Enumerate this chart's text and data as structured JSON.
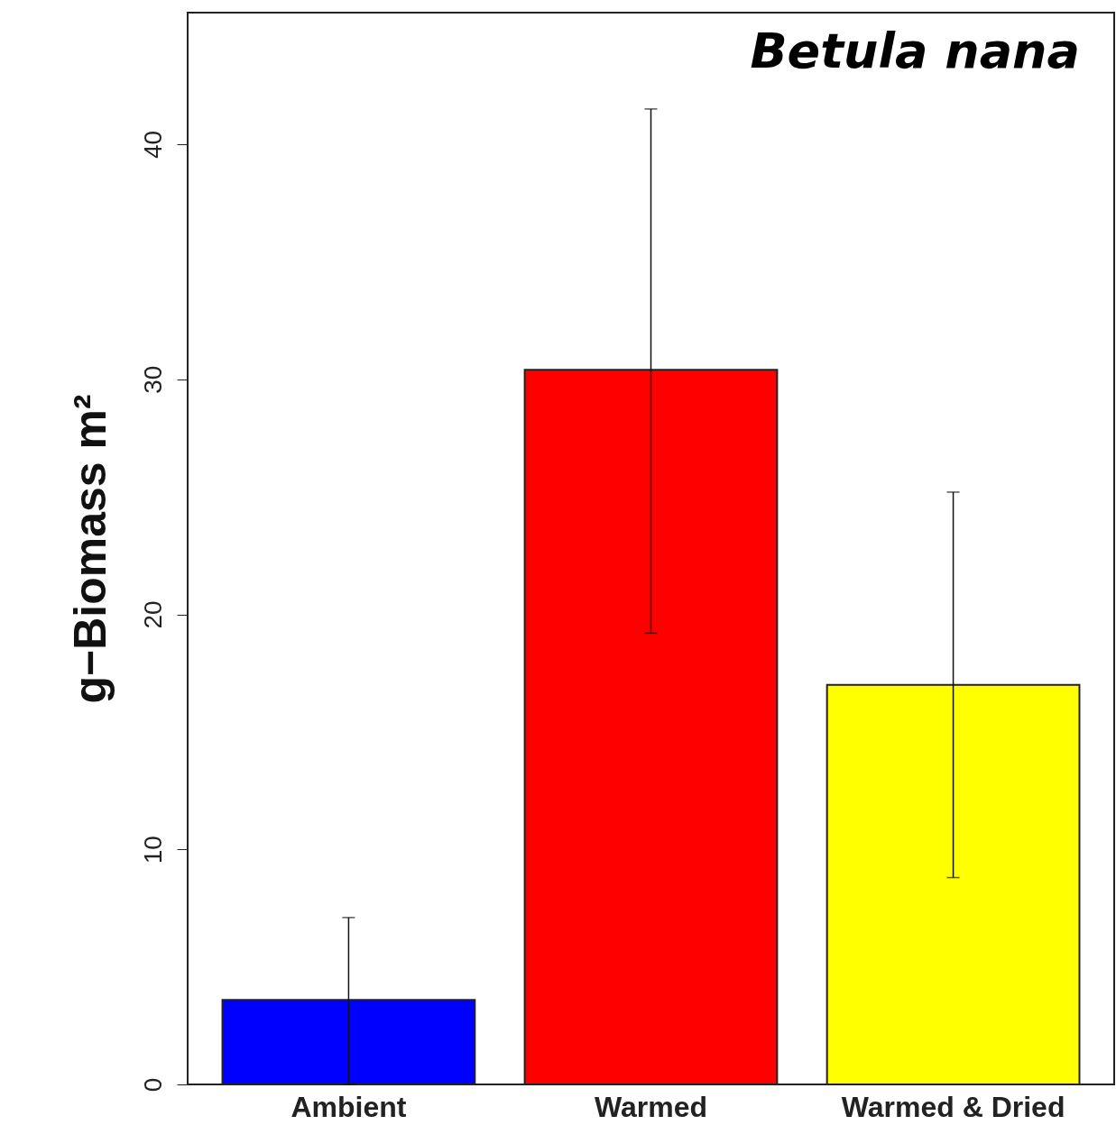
{
  "chart_data": {
    "type": "bar",
    "title": "Betula nana",
    "ylabel": "g−Biomass  m²",
    "categories": [
      "Ambient",
      "Warmed",
      "Warmed & Dried"
    ],
    "values": [
      3.6,
      30.4,
      17.0
    ],
    "colors": [
      "#0000ff",
      "#ff0000",
      "#ffff00"
    ],
    "errors": [
      [
        0,
        7.1
      ],
      [
        19.2,
        41.5
      ],
      [
        8.8,
        25.2
      ]
    ],
    "ylim": [
      0,
      45.6
    ],
    "yticks": [
      0,
      10,
      20,
      30,
      40
    ],
    "grid": false
  }
}
